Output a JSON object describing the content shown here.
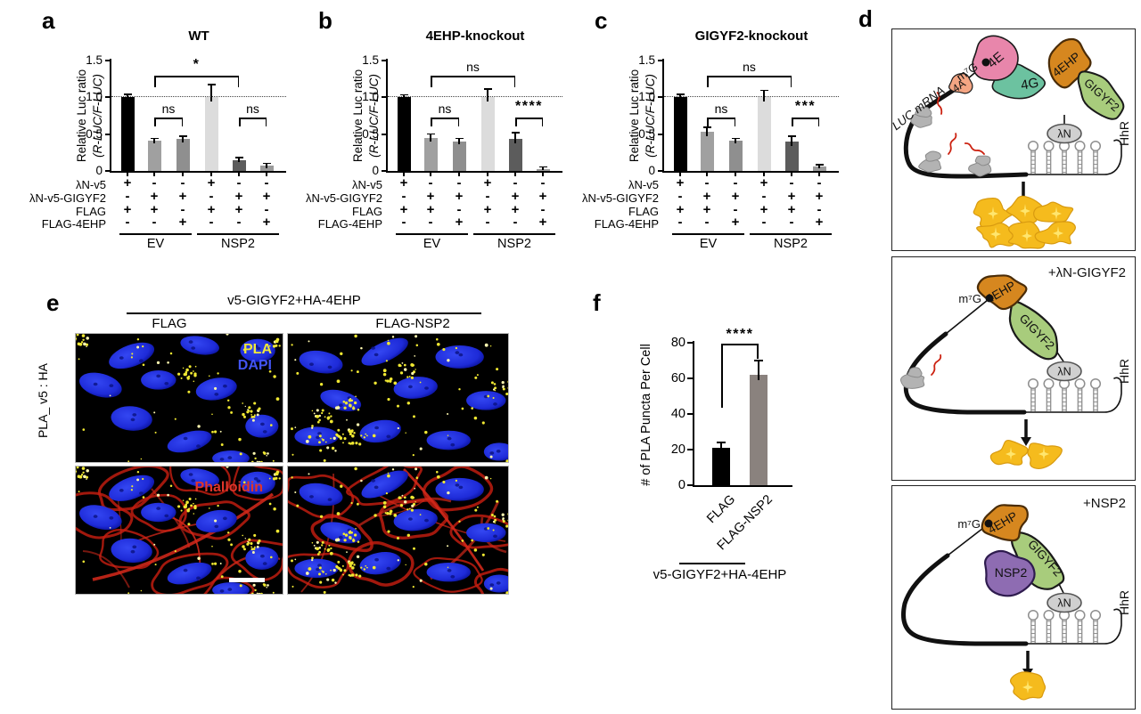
{
  "panel_letters": {
    "a": "a",
    "b": "b",
    "c": "c",
    "d": "d",
    "e": "e",
    "f": "f"
  },
  "chart_data": [
    {
      "id": "a",
      "type": "bar",
      "title": "WT",
      "ylabel_line1": "Relative Luc ratio",
      "ylabel_line2": "(R-LUC/F-LUC)",
      "ylim": [
        0,
        1.5
      ],
      "reference_line": 1.0,
      "yticks": [
        {
          "value": 0,
          "label": "0"
        },
        {
          "value": 0.5,
          "label": "0.5"
        },
        {
          "value": 1.0,
          "label": "1.0"
        },
        {
          "value": 1.5,
          "label": "1.5"
        }
      ],
      "bars": [
        {
          "value": 1.0,
          "error": 0.04,
          "color": "#000000"
        },
        {
          "value": 0.41,
          "error": 0.03,
          "color": "#a0a0a0"
        },
        {
          "value": 0.43,
          "error": 0.04,
          "color": "#8f8f8f"
        },
        {
          "value": 1.0,
          "error": 0.17,
          "color": "#dcdcdc"
        },
        {
          "value": 0.15,
          "error": 0.03,
          "color": "#5c5c5c"
        },
        {
          "value": 0.07,
          "error": 0.03,
          "color": "#9a9a9a"
        }
      ],
      "condition_rows": [
        {
          "label": "λN-v5",
          "signs": [
            "+",
            "-",
            "-",
            "+",
            "-",
            "-"
          ]
        },
        {
          "label": "λN-v5-GIGYF2",
          "signs": [
            "-",
            "+",
            "+",
            "-",
            "+",
            "+"
          ]
        },
        {
          "label": "FLAG",
          "signs": [
            "+",
            "+",
            "-",
            "+",
            "+",
            "-"
          ]
        },
        {
          "label": "FLAG-4EHP",
          "signs": [
            "-",
            "-",
            "+",
            "-",
            "-",
            "+"
          ]
        }
      ],
      "groups": [
        {
          "label": "EV"
        },
        {
          "label": "NSP2"
        }
      ],
      "significance": [
        {
          "from": 1,
          "to": 4,
          "label": "*",
          "row": "top"
        },
        {
          "from": 1,
          "to": 2,
          "label": "ns",
          "row": "low"
        },
        {
          "from": 4,
          "to": 5,
          "label": "ns",
          "row": "low"
        }
      ]
    },
    {
      "id": "b",
      "type": "bar",
      "title": "4EHP-knockout",
      "ylabel_line1": "Relative Luc ratio",
      "ylabel_line2": "(R-LUC/F-LUC)",
      "ylim": [
        0,
        1.5
      ],
      "reference_line": 1.0,
      "yticks": [
        {
          "value": 0,
          "label": "0"
        },
        {
          "value": 0.5,
          "label": "0.5"
        },
        {
          "value": 1.0,
          "label": "1.0"
        },
        {
          "value": 1.5,
          "label": "1.5"
        }
      ],
      "bars": [
        {
          "value": 1.0,
          "error": 0.03,
          "color": "#000000"
        },
        {
          "value": 0.45,
          "error": 0.05,
          "color": "#a0a0a0"
        },
        {
          "value": 0.4,
          "error": 0.04,
          "color": "#8f8f8f"
        },
        {
          "value": 1.0,
          "error": 0.11,
          "color": "#dcdcdc"
        },
        {
          "value": 0.44,
          "error": 0.08,
          "color": "#5c5c5c"
        },
        {
          "value": 0.03,
          "error": 0.02,
          "color": "#9a9a9a"
        }
      ],
      "condition_rows": [
        {
          "label": "λN-v5",
          "signs": [
            "+",
            "-",
            "-",
            "+",
            "-",
            "-"
          ]
        },
        {
          "label": "λN-v5-GIGYF2",
          "signs": [
            "-",
            "+",
            "+",
            "-",
            "+",
            "+"
          ]
        },
        {
          "label": "FLAG",
          "signs": [
            "+",
            "+",
            "-",
            "+",
            "+",
            "-"
          ]
        },
        {
          "label": "FLAG-4EHP",
          "signs": [
            "-",
            "-",
            "+",
            "-",
            "-",
            "+"
          ]
        }
      ],
      "groups": [
        {
          "label": "EV"
        },
        {
          "label": "NSP2"
        }
      ],
      "significance": [
        {
          "from": 1,
          "to": 4,
          "label": "ns",
          "row": "top"
        },
        {
          "from": 1,
          "to": 2,
          "label": "ns",
          "row": "low"
        },
        {
          "from": 4,
          "to": 5,
          "label": "****",
          "row": "low"
        }
      ]
    },
    {
      "id": "c",
      "type": "bar",
      "title": "GIGYF2-knockout",
      "ylabel_line1": "Relative Luc ratio",
      "ylabel_line2": "(R-LUC/F-LUC)",
      "ylim": [
        0,
        1.5
      ],
      "reference_line": 1.0,
      "yticks": [
        {
          "value": 0,
          "label": "0"
        },
        {
          "value": 0.5,
          "label": "0.5"
        },
        {
          "value": 1.0,
          "label": "1.0"
        },
        {
          "value": 1.5,
          "label": "1.5"
        }
      ],
      "bars": [
        {
          "value": 1.0,
          "error": 0.04,
          "color": "#000000"
        },
        {
          "value": 0.53,
          "error": 0.06,
          "color": "#a0a0a0"
        },
        {
          "value": 0.41,
          "error": 0.03,
          "color": "#8f8f8f"
        },
        {
          "value": 1.0,
          "error": 0.09,
          "color": "#dcdcdc"
        },
        {
          "value": 0.4,
          "error": 0.07,
          "color": "#5c5c5c"
        },
        {
          "value": 0.06,
          "error": 0.02,
          "color": "#9a9a9a"
        }
      ],
      "condition_rows": [
        {
          "label": "λN-v5",
          "signs": [
            "+",
            "-",
            "-",
            "+",
            "-",
            "-"
          ]
        },
        {
          "label": "λN-v5-GIGYF2",
          "signs": [
            "-",
            "+",
            "+",
            "-",
            "+",
            "+"
          ]
        },
        {
          "label": "FLAG",
          "signs": [
            "+",
            "+",
            "-",
            "+",
            "+",
            "-"
          ]
        },
        {
          "label": "FLAG-4EHP",
          "signs": [
            "-",
            "-",
            "+",
            "-",
            "-",
            "+"
          ]
        }
      ],
      "groups": [
        {
          "label": "EV"
        },
        {
          "label": "NSP2"
        }
      ],
      "significance": [
        {
          "from": 1,
          "to": 4,
          "label": "ns",
          "row": "top"
        },
        {
          "from": 1,
          "to": 2,
          "label": "ns",
          "row": "low"
        },
        {
          "from": 4,
          "to": 5,
          "label": "***",
          "row": "low"
        }
      ]
    },
    {
      "id": "f",
      "type": "bar",
      "ylabel": "# of PLA Puncta Per Cell",
      "ylim": [
        0,
        80
      ],
      "yticks": [
        {
          "value": 0,
          "label": "0"
        },
        {
          "value": 20,
          "label": "20"
        },
        {
          "value": 40,
          "label": "40"
        },
        {
          "value": 60,
          "label": "60"
        },
        {
          "value": 80,
          "label": "80"
        }
      ],
      "categories": [
        "FLAG",
        "FLAG-NSP2"
      ],
      "bars": [
        {
          "value": 21,
          "error": 3,
          "color": "#000000"
        },
        {
          "value": 62,
          "error": 8,
          "color": "#8a827e"
        }
      ],
      "significance": [
        {
          "from": 0,
          "to": 1,
          "label": "****"
        }
      ],
      "group_label": "v5-GIGYF2+HA-4EHP"
    }
  ],
  "diagram_d": {
    "boxes": [
      {
        "corner_label": "",
        "labels": {
          "mrna": "LUC mRNA",
          "cap": "m⁷G",
          "f4e": "4E",
          "f4g": "4G",
          "f4a": "4A",
          "fourEHP": "4EHP",
          "gigyf2": "GIGYF2",
          "lambdaN": "λN",
          "hhr": "HhR"
        }
      },
      {
        "corner_label": "+λN-GIGYF2",
        "labels": {
          "cap": "m⁷G",
          "fourEHP": "4EHP",
          "gigyf2": "GIGYF2",
          "lambdaN": "λN",
          "hhr": "HhR"
        }
      },
      {
        "corner_label": "+NSP2",
        "labels": {
          "cap": "m⁷G",
          "fourEHP": "4EHP",
          "gigyf2": "GIGYF2",
          "nsp2": "NSP2",
          "lambdaN": "λN",
          "hhr": "HhR"
        }
      }
    ],
    "colors": {
      "eif4e": "#e886ab",
      "eif4g": "#6cc2a0",
      "eif4a": "#f4a583",
      "fourEHP": "#d6871f",
      "gigyf2": "#a8cc7c",
      "nsp2": "#8e6cb2",
      "ribosome": "#b3b3b3",
      "lambdaN_fill": "#d0d0d0",
      "luciferase": "#f5bb1d",
      "nascent_chain": "#cc2211"
    }
  },
  "panel_e": {
    "header": "v5-GIGYF2+HA-4EHP",
    "col_labels": [
      "FLAG",
      "FLAG-NSP2"
    ],
    "row_label": "PLA_ v5 : HA",
    "image_labels": {
      "pla": "PLA",
      "dapi": "DAPI",
      "phalloidin": "Phalloidin"
    },
    "label_colors": {
      "pla": "#efe73a",
      "dapi": "#4254f2",
      "phalloidin": "#e0352a"
    }
  }
}
